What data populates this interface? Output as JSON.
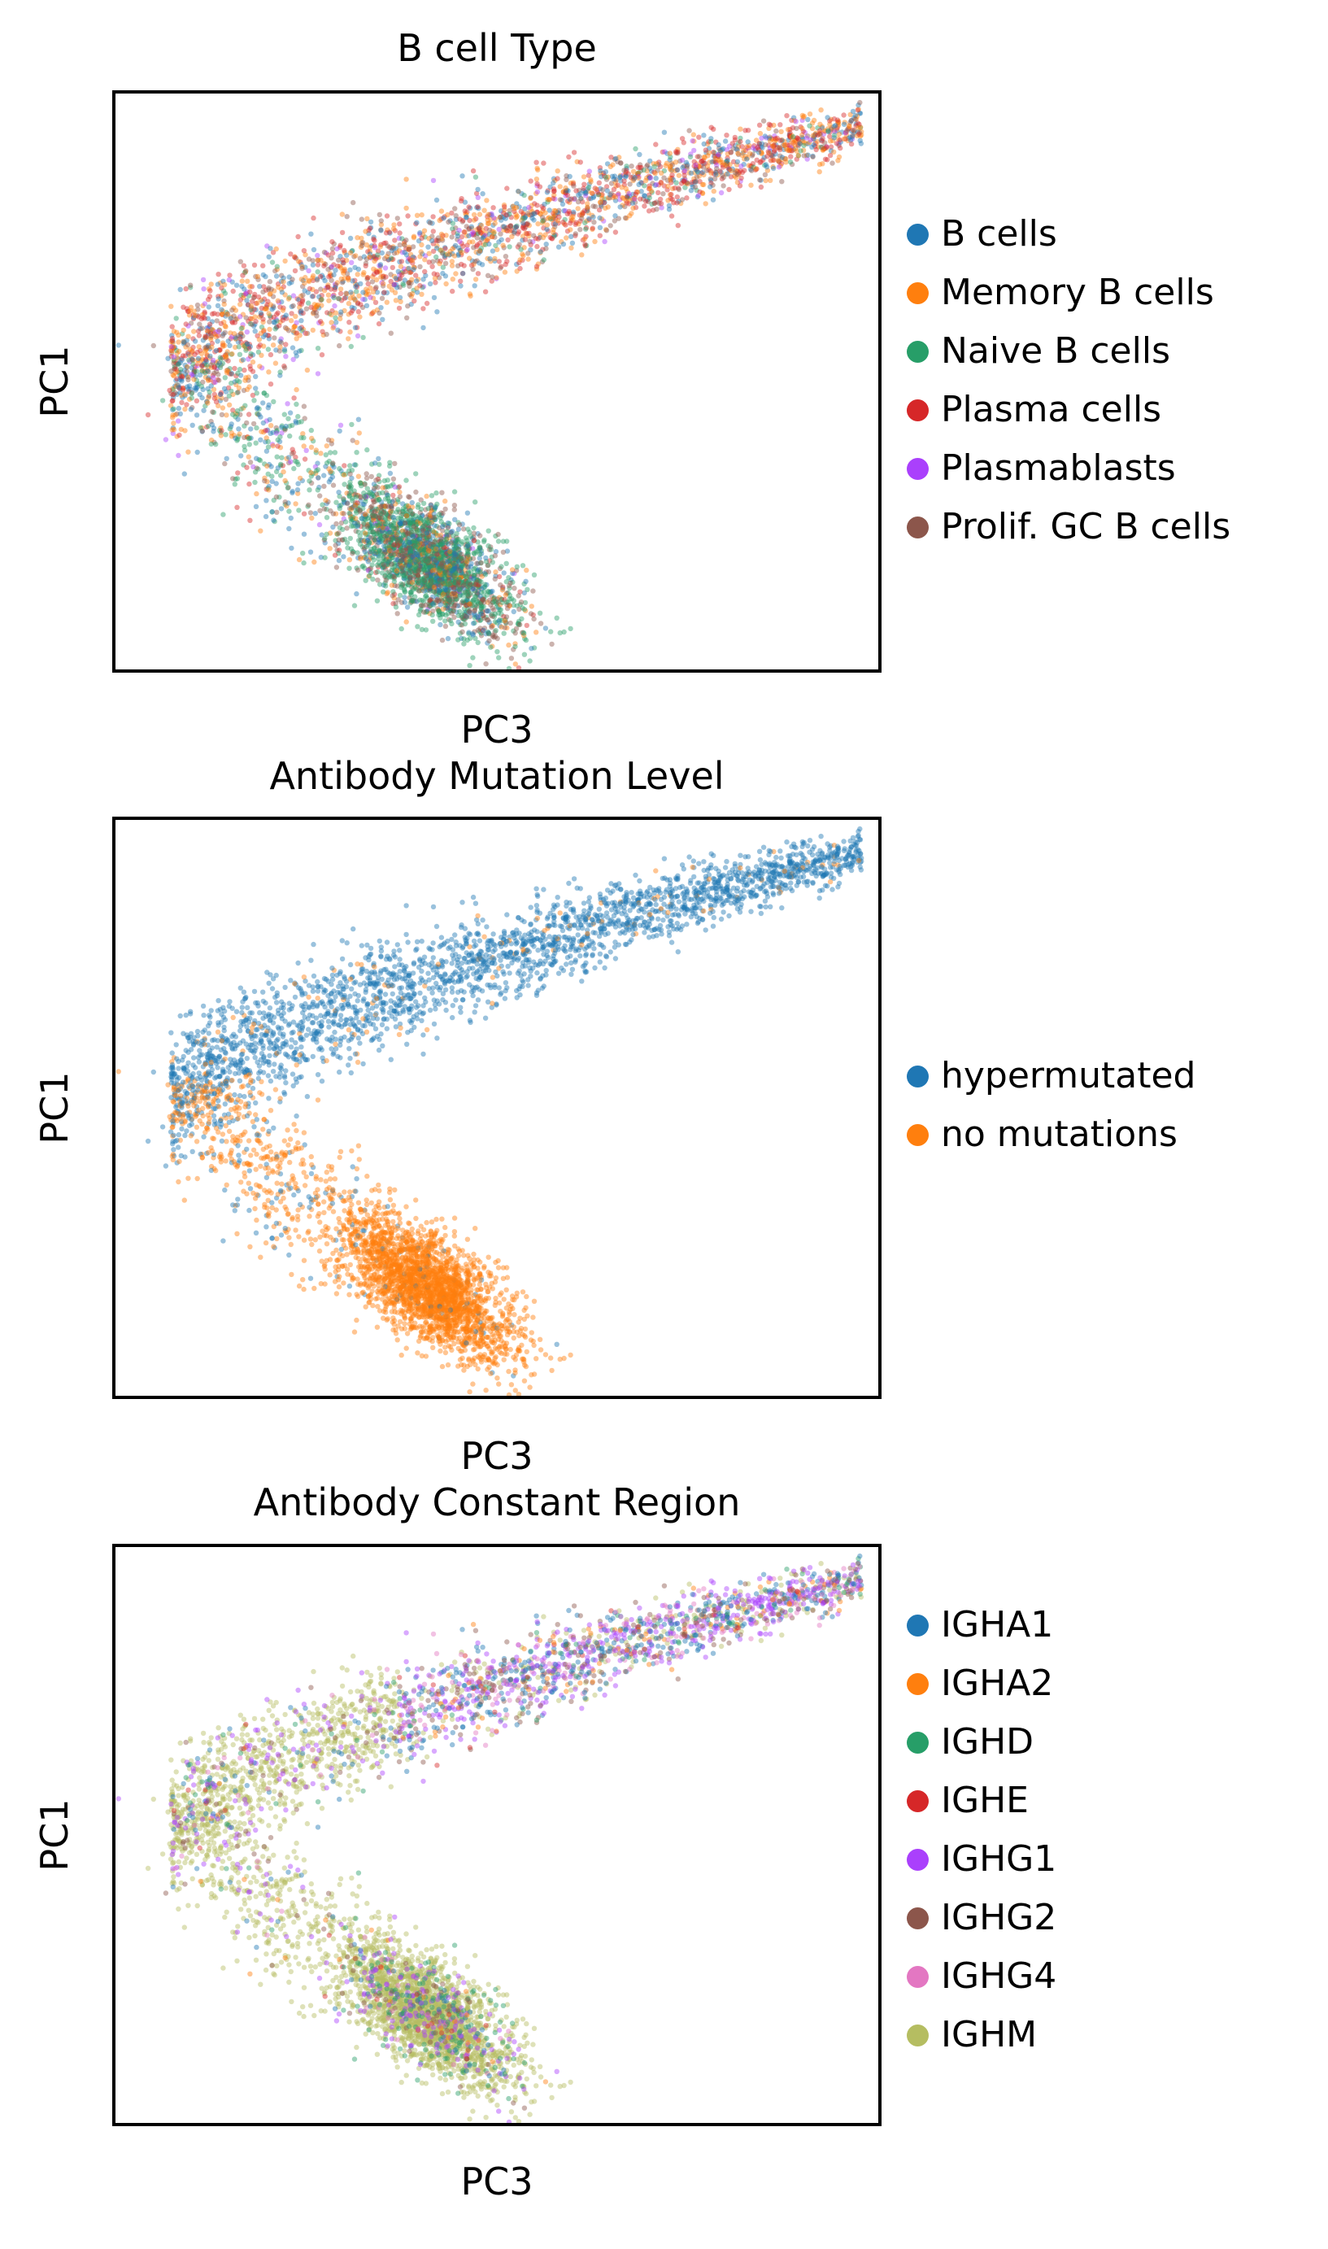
{
  "chart_data": [
    {
      "type": "scatter",
      "title": "B cell Type",
      "xlabel": "PC3",
      "ylabel": "PC1",
      "ticks": "none",
      "grid": false,
      "legend_position": "right",
      "series": [
        {
          "name": "B cells",
          "color": "#1f77b4"
        },
        {
          "name": "Memory B cells",
          "color": "#ff7f0e"
        },
        {
          "name": "Naive B cells",
          "color": "#279e68"
        },
        {
          "name": "Plasma cells",
          "color": "#d62728"
        },
        {
          "name": "Plasmablasts",
          "color": "#aa40fc"
        },
        {
          "name": "Prolif. GC B cells",
          "color": "#8c564b"
        }
      ]
    },
    {
      "type": "scatter",
      "title": "Antibody Mutation Level",
      "xlabel": "PC3",
      "ylabel": "PC1",
      "ticks": "none",
      "grid": false,
      "legend_position": "right",
      "series": [
        {
          "name": "hypermutated",
          "color": "#1f77b4"
        },
        {
          "name": "no mutations",
          "color": "#ff7f0e"
        }
      ]
    },
    {
      "type": "scatter",
      "title": "Antibody Constant Region",
      "xlabel": "PC3",
      "ylabel": "PC1",
      "ticks": "none",
      "grid": false,
      "legend_position": "right",
      "series": [
        {
          "name": "IGHA1",
          "color": "#1f77b4"
        },
        {
          "name": "IGHA2",
          "color": "#ff7f0e"
        },
        {
          "name": "IGHD",
          "color": "#279e68"
        },
        {
          "name": "IGHE",
          "color": "#d62728"
        },
        {
          "name": "IGHG1",
          "color": "#aa40fc"
        },
        {
          "name": "IGHG2",
          "color": "#8c564b"
        },
        {
          "name": "IGHG4",
          "color": "#e377c2"
        },
        {
          "name": "IGHM",
          "color": "#b5bd61"
        }
      ]
    }
  ]
}
